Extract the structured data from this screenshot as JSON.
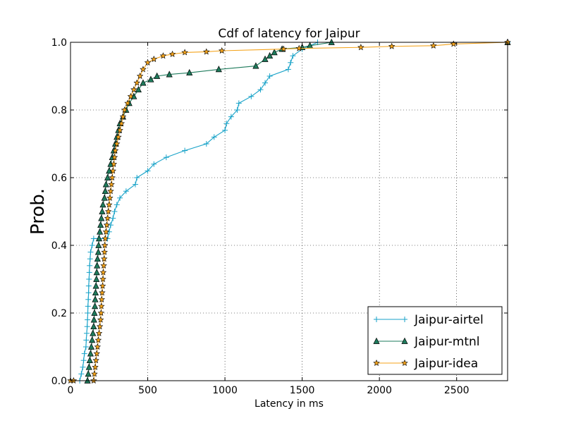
{
  "chart_data": {
    "type": "line",
    "title": "Cdf of latency for Jaipur",
    "xlabel": "Latency in ms",
    "ylabel": "Prob.",
    "xlim": [
      0,
      2830
    ],
    "ylim": [
      0,
      1.0
    ],
    "x_ticks": [
      0,
      500,
      1000,
      1500,
      2000,
      2500
    ],
    "y_ticks": [
      0.0,
      0.2,
      0.4,
      0.6,
      0.8,
      1.0
    ],
    "x_tick_labels": [
      "0",
      "500",
      "1000",
      "1500",
      "2000",
      "2500"
    ],
    "y_tick_labels": [
      "0.0",
      "0.2",
      "0.4",
      "0.6",
      "0.8",
      "1.0"
    ],
    "grid": true,
    "legend_position": "lower-right",
    "series": [
      {
        "name": "Jaipur-airtel",
        "color": "#17a2c8",
        "marker": "plus",
        "points": [
          [
            60,
            0.0
          ],
          [
            70,
            0.02
          ],
          [
            80,
            0.04
          ],
          [
            85,
            0.06
          ],
          [
            90,
            0.08
          ],
          [
            100,
            0.1
          ],
          [
            102,
            0.12
          ],
          [
            105,
            0.14
          ],
          [
            108,
            0.16
          ],
          [
            110,
            0.18
          ],
          [
            112,
            0.2
          ],
          [
            113,
            0.22
          ],
          [
            115,
            0.24
          ],
          [
            117,
            0.26
          ],
          [
            118,
            0.28
          ],
          [
            120,
            0.3
          ],
          [
            122,
            0.32
          ],
          [
            124,
            0.34
          ],
          [
            127,
            0.36
          ],
          [
            130,
            0.38
          ],
          [
            140,
            0.4
          ],
          [
            150,
            0.42
          ],
          [
            180,
            0.42
          ],
          [
            240,
            0.42
          ],
          [
            250,
            0.44
          ],
          [
            260,
            0.46
          ],
          [
            275,
            0.48
          ],
          [
            285,
            0.5
          ],
          [
            300,
            0.52
          ],
          [
            320,
            0.54
          ],
          [
            360,
            0.56
          ],
          [
            420,
            0.58
          ],
          [
            430,
            0.6
          ],
          [
            500,
            0.62
          ],
          [
            540,
            0.64
          ],
          [
            620,
            0.66
          ],
          [
            740,
            0.68
          ],
          [
            880,
            0.7
          ],
          [
            930,
            0.72
          ],
          [
            1000,
            0.74
          ],
          [
            1010,
            0.76
          ],
          [
            1040,
            0.78
          ],
          [
            1080,
            0.8
          ],
          [
            1090,
            0.82
          ],
          [
            1170,
            0.84
          ],
          [
            1230,
            0.86
          ],
          [
            1260,
            0.88
          ],
          [
            1290,
            0.9
          ],
          [
            1410,
            0.92
          ],
          [
            1425,
            0.94
          ],
          [
            1440,
            0.96
          ],
          [
            1500,
            0.98
          ],
          [
            1600,
            1.0
          ],
          [
            2830,
            1.0
          ]
        ]
      },
      {
        "name": "Jaipur-mtnl",
        "color": "#1e7b5c",
        "marker": "triangle",
        "points": [
          [
            110,
            0.0
          ],
          [
            115,
            0.02
          ],
          [
            120,
            0.04
          ],
          [
            125,
            0.06
          ],
          [
            130,
            0.08
          ],
          [
            135,
            0.1
          ],
          [
            140,
            0.12
          ],
          [
            145,
            0.14
          ],
          [
            150,
            0.16
          ],
          [
            152,
            0.18
          ],
          [
            155,
            0.2
          ],
          [
            158,
            0.22
          ],
          [
            160,
            0.24
          ],
          [
            162,
            0.26
          ],
          [
            165,
            0.28
          ],
          [
            168,
            0.3
          ],
          [
            170,
            0.32
          ],
          [
            172,
            0.34
          ],
          [
            175,
            0.36
          ],
          [
            180,
            0.38
          ],
          [
            182,
            0.4
          ],
          [
            185,
            0.42
          ],
          [
            190,
            0.44
          ],
          [
            195,
            0.46
          ],
          [
            200,
            0.48
          ],
          [
            205,
            0.5
          ],
          [
            210,
            0.52
          ],
          [
            220,
            0.54
          ],
          [
            225,
            0.56
          ],
          [
            230,
            0.58
          ],
          [
            240,
            0.6
          ],
          [
            250,
            0.62
          ],
          [
            260,
            0.64
          ],
          [
            270,
            0.66
          ],
          [
            280,
            0.68
          ],
          [
            290,
            0.7
          ],
          [
            300,
            0.72
          ],
          [
            310,
            0.74
          ],
          [
            320,
            0.76
          ],
          [
            340,
            0.78
          ],
          [
            360,
            0.8
          ],
          [
            380,
            0.82
          ],
          [
            410,
            0.84
          ],
          [
            440,
            0.86
          ],
          [
            470,
            0.88
          ],
          [
            520,
            0.89
          ],
          [
            560,
            0.9
          ],
          [
            640,
            0.905
          ],
          [
            770,
            0.91
          ],
          [
            960,
            0.92
          ],
          [
            1200,
            0.93
          ],
          [
            1260,
            0.95
          ],
          [
            1290,
            0.96
          ],
          [
            1320,
            0.97
          ],
          [
            1370,
            0.98
          ],
          [
            1500,
            0.985
          ],
          [
            1550,
            0.99
          ],
          [
            1690,
            1.0
          ],
          [
            2830,
            1.0
          ]
        ]
      },
      {
        "name": "Jaipur-idea",
        "color": "#f4a31b",
        "marker": "star",
        "points": [
          [
            0,
            0.0
          ],
          [
            20,
            0.0
          ],
          [
            150,
            0.0
          ],
          [
            155,
            0.02
          ],
          [
            160,
            0.04
          ],
          [
            165,
            0.06
          ],
          [
            170,
            0.08
          ],
          [
            175,
            0.1
          ],
          [
            180,
            0.12
          ],
          [
            185,
            0.14
          ],
          [
            190,
            0.16
          ],
          [
            195,
            0.18
          ],
          [
            198,
            0.2
          ],
          [
            200,
            0.22
          ],
          [
            202,
            0.24
          ],
          [
            205,
            0.26
          ],
          [
            208,
            0.28
          ],
          [
            210,
            0.3
          ],
          [
            212,
            0.32
          ],
          [
            215,
            0.34
          ],
          [
            218,
            0.36
          ],
          [
            220,
            0.38
          ],
          [
            222,
            0.4
          ],
          [
            225,
            0.42
          ],
          [
            230,
            0.44
          ],
          [
            235,
            0.46
          ],
          [
            240,
            0.48
          ],
          [
            245,
            0.5
          ],
          [
            250,
            0.52
          ],
          [
            255,
            0.54
          ],
          [
            260,
            0.56
          ],
          [
            265,
            0.58
          ],
          [
            270,
            0.6
          ],
          [
            275,
            0.62
          ],
          [
            280,
            0.64
          ],
          [
            285,
            0.66
          ],
          [
            290,
            0.68
          ],
          [
            300,
            0.7
          ],
          [
            310,
            0.72
          ],
          [
            320,
            0.74
          ],
          [
            330,
            0.76
          ],
          [
            340,
            0.78
          ],
          [
            350,
            0.8
          ],
          [
            370,
            0.82
          ],
          [
            390,
            0.84
          ],
          [
            410,
            0.86
          ],
          [
            430,
            0.88
          ],
          [
            450,
            0.9
          ],
          [
            470,
            0.92
          ],
          [
            500,
            0.94
          ],
          [
            540,
            0.95
          ],
          [
            600,
            0.96
          ],
          [
            660,
            0.965
          ],
          [
            740,
            0.97
          ],
          [
            880,
            0.972
          ],
          [
            980,
            0.975
          ],
          [
            1380,
            0.98
          ],
          [
            1480,
            0.982
          ],
          [
            1880,
            0.985
          ],
          [
            2080,
            0.988
          ],
          [
            2350,
            0.99
          ],
          [
            2480,
            0.995
          ],
          [
            2830,
            1.0
          ]
        ]
      }
    ]
  }
}
